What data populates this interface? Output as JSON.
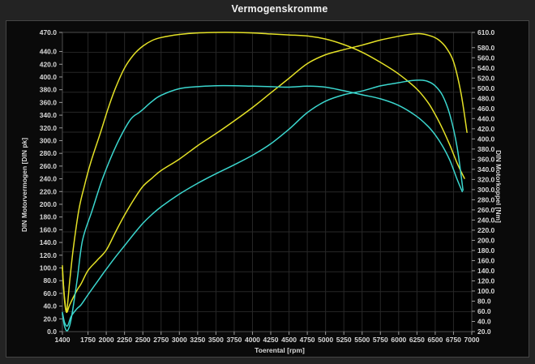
{
  "window": {
    "title": "Vermogenskromme"
  },
  "chart_data": {
    "type": "line",
    "title": "Vermogenskromme",
    "xlabel": "Toerental [rpm]",
    "ylabel_left": "DIN Motorvermogen [DIN pk]",
    "ylabel_right": "DIN Motorkoppel [Nm]",
    "x_range": [
      1400,
      7000
    ],
    "y_left_range": [
      0,
      470
    ],
    "y_right_range": [
      20,
      610
    ],
    "x_ticks": [
      1400,
      1750,
      2000,
      2250,
      2500,
      2750,
      3000,
      3250,
      3500,
      3750,
      4000,
      4250,
      4500,
      4750,
      5000,
      5250,
      5500,
      5750,
      6000,
      6250,
      6500,
      6750,
      7000
    ],
    "y_left_ticks": [
      0,
      20,
      40,
      60,
      80,
      100,
      120,
      140,
      160,
      180,
      200,
      220,
      240,
      260,
      280,
      300,
      320,
      340,
      360,
      380,
      400,
      420,
      440,
      470
    ],
    "y_right_ticks": [
      20,
      40,
      60,
      80,
      100,
      120,
      140,
      160,
      180,
      200,
      220,
      240,
      260,
      280,
      300,
      320,
      340,
      360,
      380,
      400,
      420,
      440,
      460,
      480,
      500,
      520,
      540,
      560,
      580,
      610
    ],
    "grid": true,
    "legend": "none",
    "colors": {
      "plot_bg": "#000000",
      "grid": "#272727",
      "frame": "#4d4d4d",
      "tick": "#9a9a9a",
      "yellow": "#e4e126",
      "cyan": "#3bd6ce"
    },
    "series": [
      {
        "name": "power-yellow",
        "axis": "left",
        "unit": "DIN pk",
        "color": "#e4e126",
        "points": [
          [
            1400,
            100
          ],
          [
            1415,
            70
          ],
          [
            1435,
            42
          ],
          [
            1460,
            30
          ],
          [
            1500,
            42
          ],
          [
            1600,
            65
          ],
          [
            1655,
            75
          ],
          [
            1750,
            96
          ],
          [
            1875,
            112
          ],
          [
            2000,
            128
          ],
          [
            2125,
            156
          ],
          [
            2250,
            183
          ],
          [
            2375,
            207
          ],
          [
            2500,
            228
          ],
          [
            2625,
            241
          ],
          [
            2750,
            253
          ],
          [
            3000,
            271
          ],
          [
            3250,
            292
          ],
          [
            3500,
            311
          ],
          [
            3750,
            331
          ],
          [
            4000,
            352
          ],
          [
            4250,
            375
          ],
          [
            4500,
            398
          ],
          [
            4750,
            421
          ],
          [
            5000,
            435
          ],
          [
            5250,
            443
          ],
          [
            5500,
            450
          ],
          [
            5750,
            458
          ],
          [
            6000,
            464
          ],
          [
            6150,
            467
          ],
          [
            6300,
            468
          ],
          [
            6450,
            464
          ],
          [
            6550,
            458
          ],
          [
            6650,
            446
          ],
          [
            6750,
            424
          ],
          [
            6850,
            376
          ],
          [
            6935,
            313
          ]
        ]
      },
      {
        "name": "torque-yellow",
        "axis": "right",
        "unit": "Nm",
        "color": "#e4e126",
        "points": [
          [
            1400,
            150
          ],
          [
            1415,
            110
          ],
          [
            1435,
            78
          ],
          [
            1460,
            62
          ],
          [
            1500,
            120
          ],
          [
            1550,
            185
          ],
          [
            1625,
            260
          ],
          [
            1700,
            307
          ],
          [
            1790,
            355
          ],
          [
            1920,
            412
          ],
          [
            2030,
            462
          ],
          [
            2125,
            500
          ],
          [
            2250,
            540
          ],
          [
            2375,
            566
          ],
          [
            2500,
            583
          ],
          [
            2625,
            594
          ],
          [
            2750,
            600
          ],
          [
            3000,
            606
          ],
          [
            3250,
            609
          ],
          [
            3500,
            610
          ],
          [
            3750,
            610
          ],
          [
            4000,
            609
          ],
          [
            4250,
            607
          ],
          [
            4500,
            605
          ],
          [
            4750,
            603
          ],
          [
            5000,
            597
          ],
          [
            5250,
            586
          ],
          [
            5500,
            571
          ],
          [
            5750,
            551
          ],
          [
            6000,
            528
          ],
          [
            6250,
            498
          ],
          [
            6400,
            472
          ],
          [
            6500,
            448
          ],
          [
            6600,
            420
          ],
          [
            6700,
            388
          ],
          [
            6800,
            352
          ],
          [
            6900,
            322
          ]
        ]
      },
      {
        "name": "power-cyan",
        "axis": "left",
        "unit": "DIN pk",
        "color": "#3bd6ce",
        "points": [
          [
            1400,
            30
          ],
          [
            1430,
            14
          ],
          [
            1470,
            9
          ],
          [
            1520,
            24
          ],
          [
            1600,
            36
          ],
          [
            1655,
            42
          ],
          [
            1750,
            58
          ],
          [
            1875,
            78
          ],
          [
            2000,
            98
          ],
          [
            2125,
            117
          ],
          [
            2250,
            135
          ],
          [
            2375,
            153
          ],
          [
            2500,
            170
          ],
          [
            2625,
            184
          ],
          [
            2750,
            196
          ],
          [
            3000,
            216
          ],
          [
            3250,
            233
          ],
          [
            3500,
            248
          ],
          [
            3750,
            262
          ],
          [
            4000,
            277
          ],
          [
            4250,
            295
          ],
          [
            4500,
            318
          ],
          [
            4750,
            344
          ],
          [
            5000,
            362
          ],
          [
            5250,
            372
          ],
          [
            5500,
            378
          ],
          [
            5750,
            386
          ],
          [
            6000,
            391
          ],
          [
            6150,
            394
          ],
          [
            6300,
            395
          ],
          [
            6400,
            393
          ],
          [
            6500,
            386
          ],
          [
            6600,
            371
          ],
          [
            6700,
            341
          ],
          [
            6800,
            289
          ],
          [
            6880,
            222
          ]
        ]
      },
      {
        "name": "torque-cyan",
        "axis": "right",
        "unit": "Nm",
        "color": "#3bd6ce",
        "points": [
          [
            1400,
            55
          ],
          [
            1430,
            30
          ],
          [
            1470,
            22
          ],
          [
            1520,
            45
          ],
          [
            1600,
            120
          ],
          [
            1675,
            200
          ],
          [
            1805,
            258
          ],
          [
            1950,
            322
          ],
          [
            2140,
            388
          ],
          [
            2325,
            437
          ],
          [
            2450,
            452
          ],
          [
            2500,
            458
          ],
          [
            2625,
            474
          ],
          [
            2750,
            486
          ],
          [
            3000,
            499
          ],
          [
            3250,
            503
          ],
          [
            3500,
            505
          ],
          [
            3750,
            505
          ],
          [
            4000,
            504
          ],
          [
            4250,
            503
          ],
          [
            4500,
            502
          ],
          [
            4750,
            504
          ],
          [
            5000,
            502
          ],
          [
            5250,
            495
          ],
          [
            5500,
            487
          ],
          [
            5750,
            479
          ],
          [
            6000,
            466
          ],
          [
            6250,
            444
          ],
          [
            6400,
            425
          ],
          [
            6500,
            408
          ],
          [
            6600,
            386
          ],
          [
            6700,
            358
          ],
          [
            6800,
            320
          ],
          [
            6870,
            296
          ]
        ]
      }
    ]
  }
}
